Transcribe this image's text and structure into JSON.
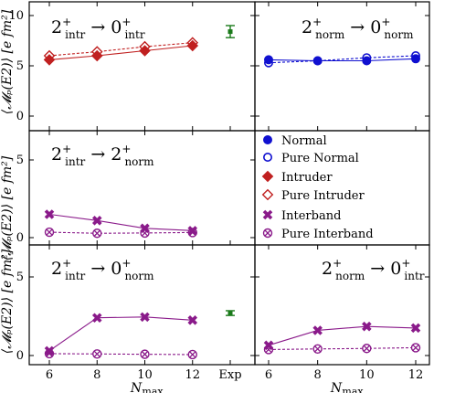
{
  "x_values": [
    "6",
    "8",
    "10",
    "12"
  ],
  "exp_label": "Exp",
  "x_label_main": "N",
  "x_label_sub": "max",
  "y_label": "⟨𝓜ₚ(E2)⟩  [e fm²]",
  "colors": {
    "normal": "#1010d0",
    "intruder": "#c02020",
    "interband": "#8a1a8a",
    "experiment": "#1a7a1a"
  },
  "panels": {
    "p11": {
      "from": "2",
      "from_sup": "+",
      "from_sub": "intr",
      "to": "0",
      "to_sup": "+",
      "to_sub": "intr"
    },
    "p12": {
      "from": "2",
      "from_sup": "+",
      "from_sub": "norm",
      "to": "0",
      "to_sup": "+",
      "to_sub": "norm"
    },
    "p21": {
      "from": "2",
      "from_sup": "+",
      "from_sub": "intr",
      "to": "2",
      "to_sup": "+",
      "to_sub": "norm"
    },
    "p31": {
      "from": "2",
      "from_sup": "+",
      "from_sub": "intr",
      "to": "0",
      "to_sup": "+",
      "to_sub": "norm"
    },
    "p32": {
      "from": "2",
      "from_sup": "+",
      "from_sub": "norm",
      "to": "0",
      "to_sup": "+",
      "to_sub": "intr"
    }
  },
  "legend": {
    "normal": "Normal",
    "pure_normal": "Pure Normal",
    "intruder": "Intruder",
    "pure_intruder": "Pure Intruder",
    "interband": "Interband",
    "pure_interband": "Pure Interband"
  },
  "y_ticks": {
    "top": [
      "0",
      "5",
      "10"
    ],
    "middle": [
      "0",
      "5"
    ],
    "bottom": [
      "0",
      "5"
    ]
  },
  "chart_data": [
    {
      "type": "line",
      "panel": "top-left",
      "title": "2+intr → 0+intr",
      "x": [
        6,
        8,
        10,
        12
      ],
      "ylim": [
        -0.5,
        12
      ],
      "series": [
        {
          "name": "Intruder",
          "values": [
            5.6,
            6.0,
            6.5,
            7.0
          ]
        },
        {
          "name": "Pure Intruder",
          "values": [
            6.0,
            6.4,
            6.9,
            7.3
          ]
        }
      ],
      "experiment": {
        "value": 8.4,
        "error": 0.6
      }
    },
    {
      "type": "line",
      "panel": "top-right",
      "title": "2+norm → 0+norm",
      "x": [
        6,
        8,
        10,
        12
      ],
      "ylim": [
        -0.5,
        12
      ],
      "series": [
        {
          "name": "Normal",
          "values": [
            5.6,
            5.5,
            5.5,
            5.7
          ]
        },
        {
          "name": "Pure Normal",
          "values": [
            5.3,
            5.5,
            5.8,
            6.0
          ]
        }
      ]
    },
    {
      "type": "line",
      "panel": "middle-left",
      "title": "2+intr → 2+norm",
      "x": [
        6,
        8,
        10,
        12
      ],
      "ylim": [
        -0.3,
        7
      ],
      "series": [
        {
          "name": "Interband",
          "values": [
            1.5,
            1.1,
            0.6,
            0.45
          ]
        },
        {
          "name": "Pure Interband",
          "values": [
            0.35,
            0.28,
            0.3,
            0.33
          ]
        }
      ]
    },
    {
      "type": "line",
      "panel": "bottom-left",
      "title": "2+intr → 0+norm",
      "x": [
        6,
        8,
        10,
        12
      ],
      "ylim": [
        -0.3,
        7
      ],
      "series": [
        {
          "name": "Interband",
          "values": [
            0.3,
            2.4,
            2.45,
            2.25
          ]
        },
        {
          "name": "Pure Interband",
          "values": [
            0.12,
            0.1,
            0.08,
            0.06
          ]
        }
      ],
      "experiment": {
        "value": 2.7,
        "error": 0.15
      }
    },
    {
      "type": "line",
      "panel": "bottom-right",
      "title": "2+norm → 0+intr",
      "x": [
        6,
        8,
        10,
        12
      ],
      "ylim": [
        -0.3,
        7
      ],
      "series": [
        {
          "name": "Interband",
          "values": [
            0.65,
            1.6,
            1.85,
            1.75
          ]
        },
        {
          "name": "Pure Interband",
          "values": [
            0.38,
            0.42,
            0.45,
            0.5
          ]
        }
      ]
    }
  ]
}
